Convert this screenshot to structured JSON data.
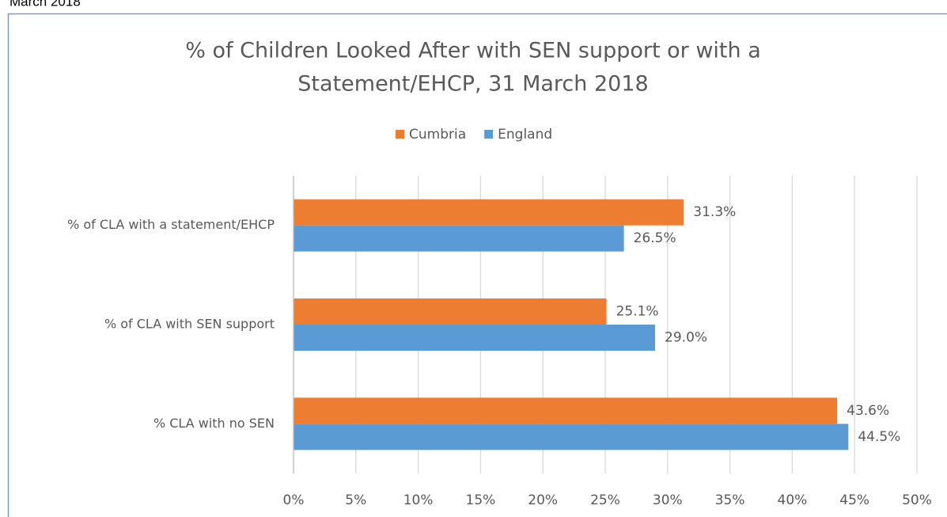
{
  "caption": "March 2018",
  "chart_data": {
    "type": "barh",
    "title_lines": [
      "% of Children Looked After with SEN support or with a",
      "Statement/EHCP, 31 March 2018"
    ],
    "categories": [
      "% of CLA with a statement/EHCP",
      "% of CLA with SEN support",
      "% CLA with no SEN"
    ],
    "series": [
      {
        "name": "Cumbria",
        "color": "#ed7d31",
        "values": [
          31.3,
          25.1,
          43.6
        ],
        "value_labels": [
          "31.3%",
          "25.1%",
          "43.6%"
        ]
      },
      {
        "name": "England",
        "color": "#5b9bd5",
        "values": [
          26.5,
          29.0,
          44.5
        ],
        "value_labels": [
          "26.5%",
          "29.0%",
          "44.5%"
        ]
      }
    ],
    "xlim": [
      0,
      50
    ],
    "xticks": [
      {
        "value": 0,
        "label": "0%"
      },
      {
        "value": 5,
        "label": "5%"
      },
      {
        "value": 10,
        "label": "10%"
      },
      {
        "value": 15,
        "label": "15%"
      },
      {
        "value": 20,
        "label": "20%"
      },
      {
        "value": 25,
        "label": "25%"
      },
      {
        "value": 30,
        "label": "30%"
      },
      {
        "value": 35,
        "label": "35%"
      },
      {
        "value": 40,
        "label": "40%"
      },
      {
        "value": 45,
        "label": "45%"
      },
      {
        "value": 50,
        "label": "50%"
      }
    ],
    "grid": true,
    "legend": "top"
  }
}
